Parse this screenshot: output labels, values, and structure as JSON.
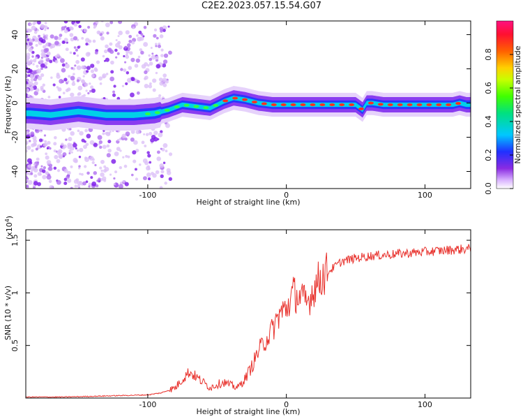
{
  "title": "C2E2.2023.057.15.54.G07",
  "chart_data": [
    {
      "type": "heatmap",
      "xlabel": "Height of straight line (km)",
      "ylabel": "Frequency (Hz)",
      "xlim": [
        -188,
        133
      ],
      "ylim": [
        -50,
        48
      ],
      "xticks": [
        -100,
        0,
        100
      ],
      "yticks": [
        -40,
        -20,
        0,
        20,
        40
      ],
      "ridge": {
        "x": [
          -185,
          -170,
          -150,
          -130,
          -110,
          -95,
          -85,
          -75,
          -65,
          -55,
          -45,
          -38,
          -30,
          -20,
          -10,
          0,
          10,
          20,
          30,
          40,
          50,
          55,
          58,
          62,
          70,
          80,
          90,
          100,
          110,
          120,
          125,
          130
        ],
        "y": [
          -6,
          -7,
          -5,
          -7,
          -7,
          -6,
          -4,
          -1,
          -2,
          -3,
          1,
          3,
          2,
          0,
          -1,
          -1,
          -1,
          -1,
          -1,
          -1,
          -1,
          -4,
          0,
          0,
          -1,
          -1,
          -1,
          -1,
          -1,
          -1,
          0,
          -1
        ]
      },
      "colorbar": {
        "label": "Normalized spectral amplitude",
        "range": [
          0,
          1
        ],
        "ticks": [
          0.0,
          0.2,
          0.4,
          0.6,
          0.8
        ]
      }
    },
    {
      "type": "line",
      "xlabel": "Height of straight line (km)",
      "ylabel": "SNR (10 * v/v)",
      "multiplier": "(x10",
      "multiplier_exp": "4",
      "multiplier_close": ")",
      "xlim": [
        -188,
        133
      ],
      "ylim": [
        0,
        1.6
      ],
      "xticks": [
        -100,
        0,
        100
      ],
      "yticks": [
        0.5,
        1.0,
        1.5
      ],
      "series_color": "#e8322d",
      "x": [
        -188,
        -160,
        -130,
        -100,
        -90,
        -80,
        -75,
        -70,
        -65,
        -60,
        -55,
        -50,
        -45,
        -40,
        -35,
        -30,
        -25,
        -20,
        -15,
        -10,
        -5,
        0,
        5,
        10,
        15,
        20,
        25,
        30,
        40,
        50,
        60,
        70,
        80,
        90,
        100,
        110,
        120,
        133
      ],
      "y": [
        0.01,
        0.01,
        0.02,
        0.03,
        0.05,
        0.1,
        0.18,
        0.25,
        0.2,
        0.15,
        0.1,
        0.13,
        0.15,
        0.12,
        0.1,
        0.18,
        0.3,
        0.45,
        0.55,
        0.65,
        0.8,
        0.85,
        1.0,
        0.95,
        0.9,
        1.05,
        1.15,
        1.2,
        1.3,
        1.33,
        1.35,
        1.36,
        1.37,
        1.38,
        1.39,
        1.4,
        1.41,
        1.42
      ]
    }
  ]
}
